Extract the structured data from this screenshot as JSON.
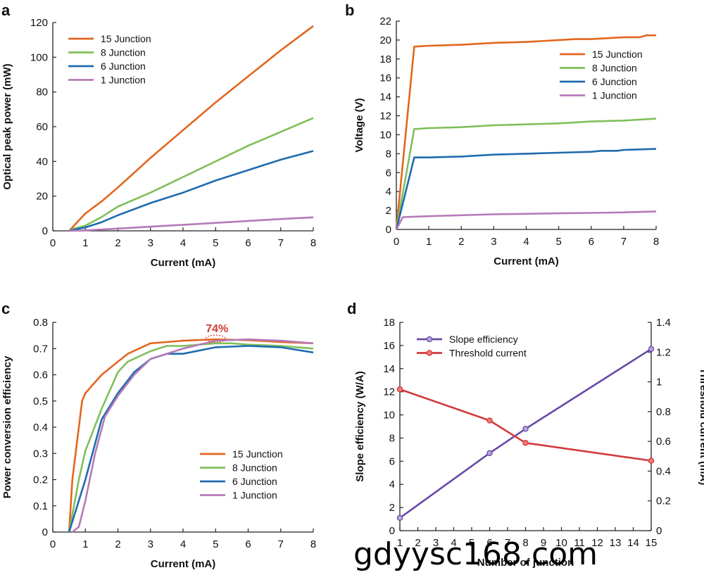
{
  "watermark": "gdyysc168.com",
  "chart_data": [
    {
      "id": "a",
      "panel_label": "a",
      "type": "line",
      "xlabel": "Current (mA)",
      "ylabel": "Optical peak power (mW)",
      "xlim": [
        0,
        8
      ],
      "ylim": [
        0,
        120
      ],
      "xticks": [
        0,
        1,
        2,
        3,
        4,
        5,
        6,
        7,
        8
      ],
      "yticks": [
        0,
        20,
        40,
        60,
        80,
        100,
        120
      ],
      "legend_position": "top-left",
      "series": [
        {
          "name": "15 Junction",
          "color": "#e2661f",
          "x": [
            0.5,
            0.6,
            0.9,
            1.0,
            1.5,
            2.0,
            3.0,
            4.0,
            5.0,
            6.0,
            7.0,
            7.5,
            8.0
          ],
          "y": [
            0,
            2,
            8,
            10,
            17,
            25,
            42,
            58,
            74,
            89,
            104,
            111,
            118
          ]
        },
        {
          "name": "8 Junction",
          "color": "#7fbf5a",
          "x": [
            0.5,
            0.6,
            1.0,
            1.5,
            2.0,
            3.0,
            4.0,
            5.0,
            6.0,
            7.0,
            7.5,
            8.0
          ],
          "y": [
            0,
            1,
            3,
            8,
            14,
            22,
            31,
            40,
            49,
            57,
            61,
            65
          ]
        },
        {
          "name": "6 Junction",
          "color": "#1f6bb0",
          "x": [
            0.5,
            0.6,
            1.0,
            1.5,
            2.0,
            3.0,
            4.0,
            5.0,
            6.0,
            6.5,
            7.0,
            8.0
          ],
          "y": [
            0,
            0.5,
            2,
            5,
            9,
            16,
            22,
            29,
            35,
            38,
            41,
            46
          ]
        },
        {
          "name": "1 Junction",
          "color": "#b57ab8",
          "x": [
            0.5,
            1.0,
            2.0,
            3.0,
            4.0,
            5.0,
            6.0,
            7.0,
            8.0
          ],
          "y": [
            0,
            0.3,
            1.3,
            2.4,
            3.5,
            4.6,
            5.7,
            6.8,
            7.8
          ]
        }
      ]
    },
    {
      "id": "b",
      "panel_label": "b",
      "type": "line",
      "xlabel": "Current (mA)",
      "ylabel": "Voltage (V)",
      "xlim": [
        0,
        8
      ],
      "ylim": [
        0,
        22
      ],
      "xticks": [
        0,
        1,
        2,
        3,
        4,
        5,
        6,
        7,
        8
      ],
      "yticks": [
        0,
        2,
        4,
        6,
        8,
        10,
        12,
        14,
        16,
        18,
        20,
        22
      ],
      "legend_position": "top-right",
      "series": [
        {
          "name": "15 Junction",
          "color": "#e2661f",
          "x": [
            0.0,
            0.55,
            1.0,
            2.0,
            3.0,
            4.0,
            5.0,
            5.5,
            6.0,
            7.0,
            7.5,
            7.7,
            8.0
          ],
          "y": [
            0,
            19.3,
            19.4,
            19.5,
            19.7,
            19.8,
            20.0,
            20.1,
            20.1,
            20.3,
            20.3,
            20.5,
            20.5
          ]
        },
        {
          "name": "8 Junction",
          "color": "#7fbf5a",
          "x": [
            0.0,
            0.55,
            1.0,
            2.0,
            3.0,
            4.0,
            5.0,
            5.5,
            6.0,
            7.0,
            8.0
          ],
          "y": [
            0,
            10.6,
            10.7,
            10.8,
            11.0,
            11.1,
            11.2,
            11.3,
            11.4,
            11.5,
            11.7
          ]
        },
        {
          "name": "6 Junction",
          "color": "#1f6bb0",
          "x": [
            0.0,
            0.55,
            1.0,
            2.0,
            3.0,
            4.0,
            5.0,
            6.0,
            6.3,
            6.8,
            7.0,
            8.0
          ],
          "y": [
            0,
            7.6,
            7.6,
            7.7,
            7.9,
            8.0,
            8.1,
            8.2,
            8.3,
            8.3,
            8.4,
            8.5
          ]
        },
        {
          "name": "1 Junction",
          "color": "#b57ab8",
          "x": [
            0.0,
            0.2,
            1.0,
            2.0,
            3.0,
            4.0,
            5.0,
            6.0,
            7.0,
            8.0
          ],
          "y": [
            0,
            1.3,
            1.4,
            1.5,
            1.6,
            1.65,
            1.7,
            1.75,
            1.8,
            1.9
          ]
        }
      ]
    },
    {
      "id": "c",
      "panel_label": "c",
      "type": "line",
      "xlabel": "Current (mA)",
      "ylabel": "Power conversion efficiency",
      "xlim": [
        0,
        8
      ],
      "ylim": [
        0,
        0.8
      ],
      "xticks": [
        0,
        1,
        2,
        3,
        4,
        5,
        6,
        7,
        8
      ],
      "yticks": [
        0,
        0.1,
        0.2,
        0.3,
        0.4,
        0.5,
        0.6,
        0.7,
        0.8
      ],
      "legend_position": "bottom-right",
      "annotation": {
        "text": "74%",
        "x": 5.0,
        "y": 0.735
      },
      "series": [
        {
          "name": "15 Junction",
          "color": "#e2661f",
          "x": [
            0.5,
            0.6,
            0.9,
            1.0,
            1.5,
            2.0,
            2.3,
            3.0,
            4.0,
            5.0,
            6.0,
            7.0,
            8.0
          ],
          "y": [
            0,
            0.2,
            0.5,
            0.53,
            0.6,
            0.65,
            0.68,
            0.72,
            0.73,
            0.735,
            0.732,
            0.725,
            0.72
          ]
        },
        {
          "name": "8 Junction",
          "color": "#7fbf5a",
          "x": [
            0.5,
            0.8,
            1.0,
            1.5,
            2.0,
            2.3,
            3.0,
            3.5,
            4.0,
            5.0,
            5.5,
            6.0,
            7.0,
            8.0
          ],
          "y": [
            0,
            0.2,
            0.31,
            0.47,
            0.61,
            0.65,
            0.69,
            0.71,
            0.71,
            0.72,
            0.72,
            0.715,
            0.71,
            0.7
          ]
        },
        {
          "name": "6 Junction",
          "color": "#1f6bb0",
          "x": [
            0.5,
            1.0,
            1.5,
            2.0,
            2.5,
            3.0,
            3.5,
            4.0,
            5.0,
            6.0,
            7.0,
            7.5,
            8.0
          ],
          "y": [
            0,
            0.2,
            0.43,
            0.53,
            0.61,
            0.66,
            0.68,
            0.68,
            0.705,
            0.71,
            0.705,
            0.695,
            0.685
          ]
        },
        {
          "name": "1 Junction",
          "color": "#b57ab8",
          "x": [
            0.6,
            0.8,
            1.0,
            1.3,
            1.6,
            2.0,
            2.5,
            3.0,
            4.0,
            5.0,
            6.0,
            7.0,
            8.0
          ],
          "y": [
            0,
            0.02,
            0.12,
            0.3,
            0.44,
            0.52,
            0.6,
            0.66,
            0.7,
            0.73,
            0.735,
            0.73,
            0.72
          ]
        }
      ]
    },
    {
      "id": "d",
      "panel_label": "d",
      "type": "line",
      "xlabel": "Number of junction",
      "ylabel": "Slope efficiency (W/A)",
      "y2label": "Threshold current (mA)",
      "xlim": [
        1,
        15
      ],
      "ylim": [
        0,
        18
      ],
      "y2lim": [
        0,
        1.4
      ],
      "xticks": [
        1,
        2,
        3,
        4,
        5,
        6,
        7,
        8,
        9,
        10,
        11,
        12,
        13,
        14,
        15
      ],
      "yticks": [
        0,
        2,
        4,
        6,
        8,
        10,
        12,
        14,
        16,
        18
      ],
      "y2ticks": [
        0,
        0.2,
        0.4,
        0.6,
        0.8,
        1.0,
        1.2,
        1.4
      ],
      "legend_position": "top-left",
      "series": [
        {
          "name": "Slope efficiency",
          "color": "#6a4aa8",
          "axis": "left",
          "x": [
            1,
            6,
            8,
            15
          ],
          "y": [
            1.1,
            6.7,
            8.8,
            15.7
          ]
        },
        {
          "name": "Threshold current",
          "color": "#d23a3a",
          "axis": "right",
          "x": [
            1,
            6,
            8,
            15
          ],
          "y": [
            0.95,
            0.74,
            0.59,
            0.47
          ]
        }
      ]
    }
  ]
}
